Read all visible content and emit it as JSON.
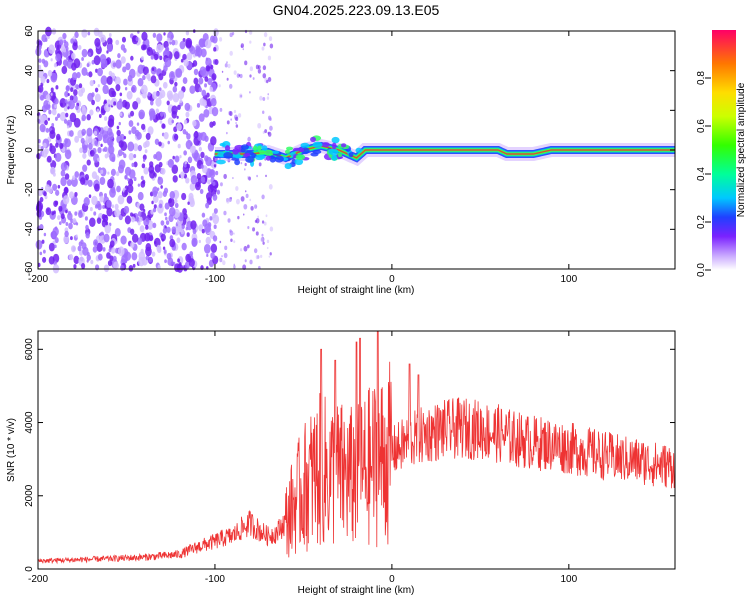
{
  "title": "GN04.2025.223.09.13.E05",
  "chart_data": [
    {
      "type": "heatmap",
      "xlabel": "Height of straight line (km)",
      "ylabel": "Frequency (Hz)",
      "xlim": [
        -200,
        160
      ],
      "ylim": [
        -60,
        60
      ],
      "xticks": [
        -200,
        -100,
        0,
        100
      ],
      "yticks": [
        -60,
        -40,
        -20,
        0,
        20,
        40,
        60
      ],
      "colorbar": {
        "label": "Normalized spectral amplitude",
        "range": [
          0.0,
          1.0
        ],
        "ticks": [
          0.0,
          0.2,
          0.4,
          0.6,
          0.8
        ]
      },
      "signal_track": {
        "x": [
          -100,
          -90,
          -80,
          -70,
          -60,
          -50,
          -40,
          -30,
          -20,
          -15,
          -10,
          0,
          20,
          40,
          60,
          65,
          70,
          80,
          90,
          100,
          120,
          140,
          160
        ],
        "y": [
          -2,
          -2,
          -2,
          -1,
          -4,
          0,
          2,
          0,
          -4,
          0,
          0,
          0,
          0,
          0,
          0,
          -2,
          -2,
          -2,
          0,
          0,
          0,
          0,
          0
        ]
      },
      "noise_region": {
        "x_range": [
          -200,
          -68
        ],
        "note_levels": [
          0.1,
          0.3
        ]
      }
    },
    {
      "type": "line",
      "xlabel": "Height of straight line (km)",
      "ylabel": "SNR (10 * v/v)",
      "xlim": [
        -200,
        160
      ],
      "ylim": [
        0,
        6500
      ],
      "xticks": [
        -200,
        -100,
        0,
        100
      ],
      "yticks": [
        0,
        2000,
        4000,
        6000
      ],
      "series": [
        {
          "color": "#ee3333",
          "x": [
            -200,
            -180,
            -160,
            -140,
            -120,
            -110,
            -100,
            -95,
            -90,
            -85,
            -80,
            -75,
            -70,
            -65,
            -60,
            -55,
            -50,
            -45,
            -40,
            -35,
            -30,
            -25,
            -20,
            -15,
            -10,
            -5,
            0,
            10,
            20,
            30,
            40,
            50,
            60,
            70,
            80,
            90,
            100,
            110,
            120,
            130,
            140,
            150,
            160
          ],
          "values": [
            220,
            250,
            280,
            320,
            400,
            600,
            750,
            850,
            900,
            1100,
            1250,
            1050,
            900,
            1000,
            1300,
            1800,
            2200,
            2500,
            2700,
            2600,
            2600,
            2500,
            2500,
            2700,
            2900,
            3000,
            3200,
            3500,
            3700,
            3800,
            3850,
            3800,
            3700,
            3550,
            3450,
            3400,
            3300,
            3200,
            3100,
            3000,
            2950,
            2850,
            2800
          ],
          "spikes": [
            {
              "x": -40,
              "value": 6000
            },
            {
              "x": -32,
              "value": 5700
            },
            {
              "x": -20,
              "value": 6200
            },
            {
              "x": -18,
              "value": 6300
            },
            {
              "x": -8,
              "value": 6500
            },
            {
              "x": 10,
              "value": 5600
            },
            {
              "x": 15,
              "value": 5300
            }
          ]
        }
      ]
    }
  ]
}
